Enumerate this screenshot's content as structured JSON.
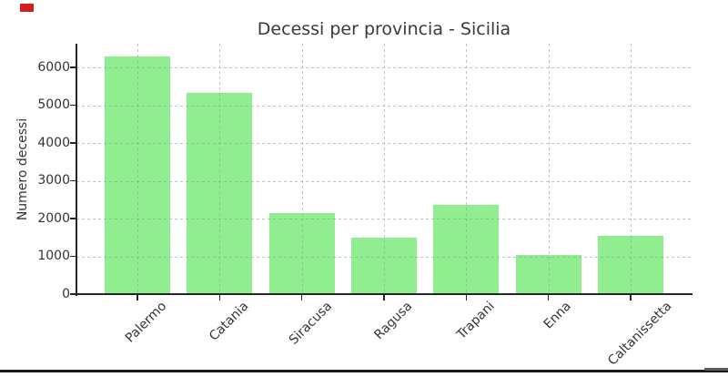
{
  "artifacts": {
    "top_left_marker_color": "#d21f1f",
    "bottom_rule_color": "#1a1a1a",
    "scrollbar_thumb_color": "#5a5a5a"
  },
  "chart_data": {
    "type": "bar",
    "title": "Decessi per provincia - Sicilia",
    "ylabel": "Numero decessi",
    "xlabel": "",
    "categories": [
      "Palermo",
      "Catania",
      "Siracusa",
      "Ragusa",
      "Trapani",
      "Enna",
      "Caltanissetta"
    ],
    "values": [
      6300,
      5320,
      2140,
      1500,
      2360,
      1030,
      1550
    ],
    "yticks": [
      0,
      1000,
      2000,
      3000,
      4000,
      5000,
      6000
    ],
    "ylim": [
      0,
      6630
    ],
    "grid": true,
    "grid_style": "dashed",
    "legend": false,
    "bar_color": "#90EE90",
    "axis_color": "#262626",
    "text_color": "#333333",
    "title_color": "#3a3a3a",
    "x_tick_rotation_deg": 45
  }
}
